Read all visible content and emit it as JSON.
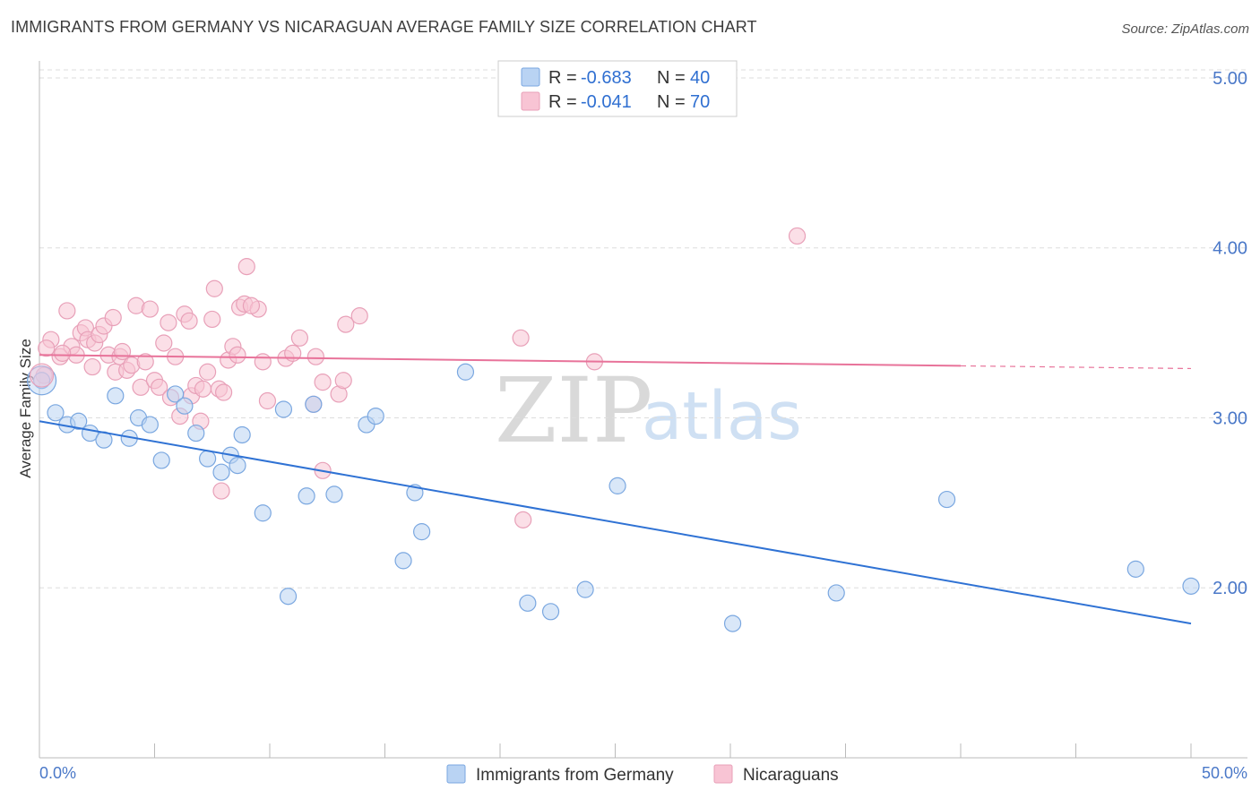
{
  "header": {
    "title": "IMMIGRANTS FROM GERMANY VS NICARAGUAN AVERAGE FAMILY SIZE CORRELATION CHART",
    "source": "Source: ZipAtlas.com"
  },
  "watermark": {
    "zip": "ZIP",
    "atlas": "atlas"
  },
  "colors": {
    "blue": "#4a86d9",
    "blue_fill": "#b9d3f3",
    "pink": "#e8739a",
    "pink_fill": "#f8c4d4",
    "grid": "#dddddd",
    "tick_text": "#4a78c8"
  },
  "legend": {
    "rows": [
      {
        "r_label": "R = ",
        "r_value": "-0.683",
        "n_label": "N = ",
        "n_value": "40"
      },
      {
        "r_label": "R = ",
        "r_value": "-0.041",
        "n_label": "N = ",
        "n_value": "70"
      }
    ]
  },
  "chart_data": {
    "type": "scatter",
    "title": "IMMIGRANTS FROM GERMANY VS NICARAGUAN AVERAGE FAMILY SIZE CORRELATION CHART",
    "xlabel": "",
    "ylabel": "Average Family Size",
    "xlim": [
      0,
      50
    ],
    "ylim": [
      1.0,
      5.1
    ],
    "x_tick_labels": [
      "0.0%",
      "50.0%"
    ],
    "y_ticks": [
      2.0,
      3.0,
      4.0,
      5.0
    ],
    "y_tick_labels": [
      "2.00",
      "3.00",
      "4.00",
      "5.00"
    ],
    "grid": true,
    "legend_position": "bottom",
    "series": [
      {
        "name": "Immigrants from Germany",
        "color": "#4a86d9",
        "r": -0.683,
        "n": 40,
        "trend": {
          "x": [
            0,
            50
          ],
          "y": [
            2.98,
            1.79
          ],
          "dashed_from": null
        },
        "points": [
          [
            0.1,
            3.22
          ],
          [
            0.7,
            3.03
          ],
          [
            1.2,
            2.96
          ],
          [
            1.7,
            2.98
          ],
          [
            2.2,
            2.91
          ],
          [
            2.8,
            2.87
          ],
          [
            3.3,
            3.13
          ],
          [
            3.9,
            2.88
          ],
          [
            4.3,
            3.0
          ],
          [
            4.8,
            2.96
          ],
          [
            5.3,
            2.75
          ],
          [
            5.9,
            3.14
          ],
          [
            6.3,
            3.07
          ],
          [
            6.8,
            2.91
          ],
          [
            7.3,
            2.76
          ],
          [
            7.9,
            2.68
          ],
          [
            8.3,
            2.78
          ],
          [
            8.6,
            2.72
          ],
          [
            8.8,
            2.9
          ],
          [
            9.7,
            2.44
          ],
          [
            10.6,
            3.05
          ],
          [
            10.8,
            1.95
          ],
          [
            11.6,
            2.54
          ],
          [
            11.9,
            3.08
          ],
          [
            12.8,
            2.55
          ],
          [
            14.2,
            2.96
          ],
          [
            14.6,
            3.01
          ],
          [
            15.8,
            2.16
          ],
          [
            16.3,
            2.56
          ],
          [
            16.6,
            2.33
          ],
          [
            18.5,
            3.27
          ],
          [
            21.2,
            1.91
          ],
          [
            22.2,
            1.86
          ],
          [
            23.7,
            1.99
          ],
          [
            25.1,
            2.6
          ],
          [
            30.1,
            1.79
          ],
          [
            34.6,
            1.97
          ],
          [
            39.4,
            2.52
          ],
          [
            47.6,
            2.11
          ],
          [
            50.0,
            2.01
          ]
        ]
      },
      {
        "name": "Nicaraguans",
        "color": "#e8739a",
        "r": -0.041,
        "n": 70,
        "trend": {
          "x": [
            0,
            50
          ],
          "y": [
            3.37,
            3.29
          ],
          "dashed_from": 40.0
        },
        "points": [
          [
            0.2,
            3.25
          ],
          [
            0.5,
            3.46
          ],
          [
            0.9,
            3.36
          ],
          [
            1.2,
            3.63
          ],
          [
            1.4,
            3.42
          ],
          [
            1.6,
            3.37
          ],
          [
            1.8,
            3.5
          ],
          [
            2.0,
            3.53
          ],
          [
            2.1,
            3.46
          ],
          [
            2.3,
            3.3
          ],
          [
            2.4,
            3.44
          ],
          [
            2.6,
            3.49
          ],
          [
            2.8,
            3.54
          ],
          [
            3.0,
            3.37
          ],
          [
            3.2,
            3.59
          ],
          [
            3.3,
            3.27
          ],
          [
            3.5,
            3.36
          ],
          [
            3.6,
            3.39
          ],
          [
            3.8,
            3.28
          ],
          [
            4.0,
            3.31
          ],
          [
            4.2,
            3.66
          ],
          [
            4.4,
            3.18
          ],
          [
            4.6,
            3.33
          ],
          [
            4.8,
            3.64
          ],
          [
            5.0,
            3.22
          ],
          [
            5.2,
            3.18
          ],
          [
            5.4,
            3.44
          ],
          [
            5.6,
            3.56
          ],
          [
            5.9,
            3.36
          ],
          [
            6.1,
            3.01
          ],
          [
            6.3,
            3.61
          ],
          [
            6.5,
            3.57
          ],
          [
            6.6,
            3.13
          ],
          [
            6.8,
            3.19
          ],
          [
            7.0,
            2.98
          ],
          [
            7.1,
            3.17
          ],
          [
            7.3,
            3.27
          ],
          [
            7.5,
            3.58
          ],
          [
            7.6,
            3.76
          ],
          [
            7.8,
            3.17
          ],
          [
            7.9,
            2.57
          ],
          [
            8.0,
            3.15
          ],
          [
            8.2,
            3.34
          ],
          [
            8.4,
            3.42
          ],
          [
            8.6,
            3.37
          ],
          [
            8.7,
            3.65
          ],
          [
            8.9,
            3.67
          ],
          [
            9.0,
            3.89
          ],
          [
            9.5,
            3.64
          ],
          [
            9.7,
            3.33
          ],
          [
            9.9,
            3.1
          ],
          [
            10.7,
            3.35
          ],
          [
            11.0,
            3.38
          ],
          [
            11.3,
            3.47
          ],
          [
            11.9,
            3.08
          ],
          [
            12.3,
            2.69
          ],
          [
            12.3,
            3.21
          ],
          [
            13.0,
            3.14
          ],
          [
            13.2,
            3.22
          ],
          [
            13.3,
            3.55
          ],
          [
            13.9,
            3.6
          ],
          [
            20.9,
            3.47
          ],
          [
            21.0,
            2.4
          ],
          [
            24.1,
            3.33
          ],
          [
            32.9,
            4.07
          ],
          [
            0.3,
            3.41
          ],
          [
            1.0,
            3.38
          ],
          [
            5.7,
            3.12
          ],
          [
            9.2,
            3.66
          ],
          [
            12.0,
            3.36
          ]
        ]
      }
    ]
  }
}
